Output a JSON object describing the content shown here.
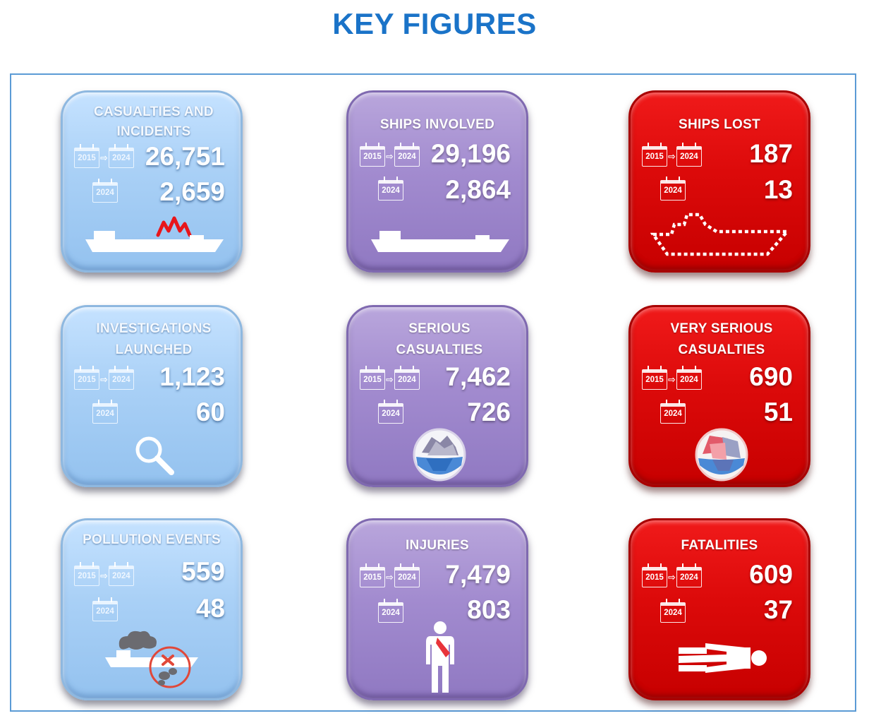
{
  "page": {
    "title": "KEY FIGURES"
  },
  "period": {
    "from": "2015",
    "to": "2024",
    "single": "2024"
  },
  "colors": {
    "title": "#1a73c8",
    "blue_tile": "#a9d0f6",
    "purple_tile": "#a28bcf",
    "red_tile": "#dc0a0a"
  },
  "tiles": [
    {
      "title": "CASUALTIES AND INCIDENTS",
      "total": "26,751",
      "year": "2,659",
      "icon": "ship-incident-icon"
    },
    {
      "title": "SHIPS INVOLVED",
      "total": "29,196",
      "year": "2,864",
      "icon": "ship-icon"
    },
    {
      "title": "SHIPS LOST",
      "total": "187",
      "year": "13",
      "icon": "ship-lost-icon"
    },
    {
      "title": "INVESTIGATIONS LAUNCHED",
      "total": "1,123",
      "year": "60",
      "icon": "magnifier-icon"
    },
    {
      "title": "SERIOUS CASUALTIES",
      "total": "7,462",
      "year": "726",
      "icon": "iceberg-icon"
    },
    {
      "title": "VERY SERIOUS CASUALTIES",
      "total": "690",
      "year": "51",
      "icon": "iceberg-red-icon"
    },
    {
      "title": "POLLUTION EVENTS",
      "total": "559",
      "year": "48",
      "icon": "pollution-icon"
    },
    {
      "title": "INJURIES",
      "total": "7,479",
      "year": "803",
      "icon": "injured-person-icon"
    },
    {
      "title": "FATALITIES",
      "total": "609",
      "year": "37",
      "icon": "fatality-icon"
    }
  ]
}
